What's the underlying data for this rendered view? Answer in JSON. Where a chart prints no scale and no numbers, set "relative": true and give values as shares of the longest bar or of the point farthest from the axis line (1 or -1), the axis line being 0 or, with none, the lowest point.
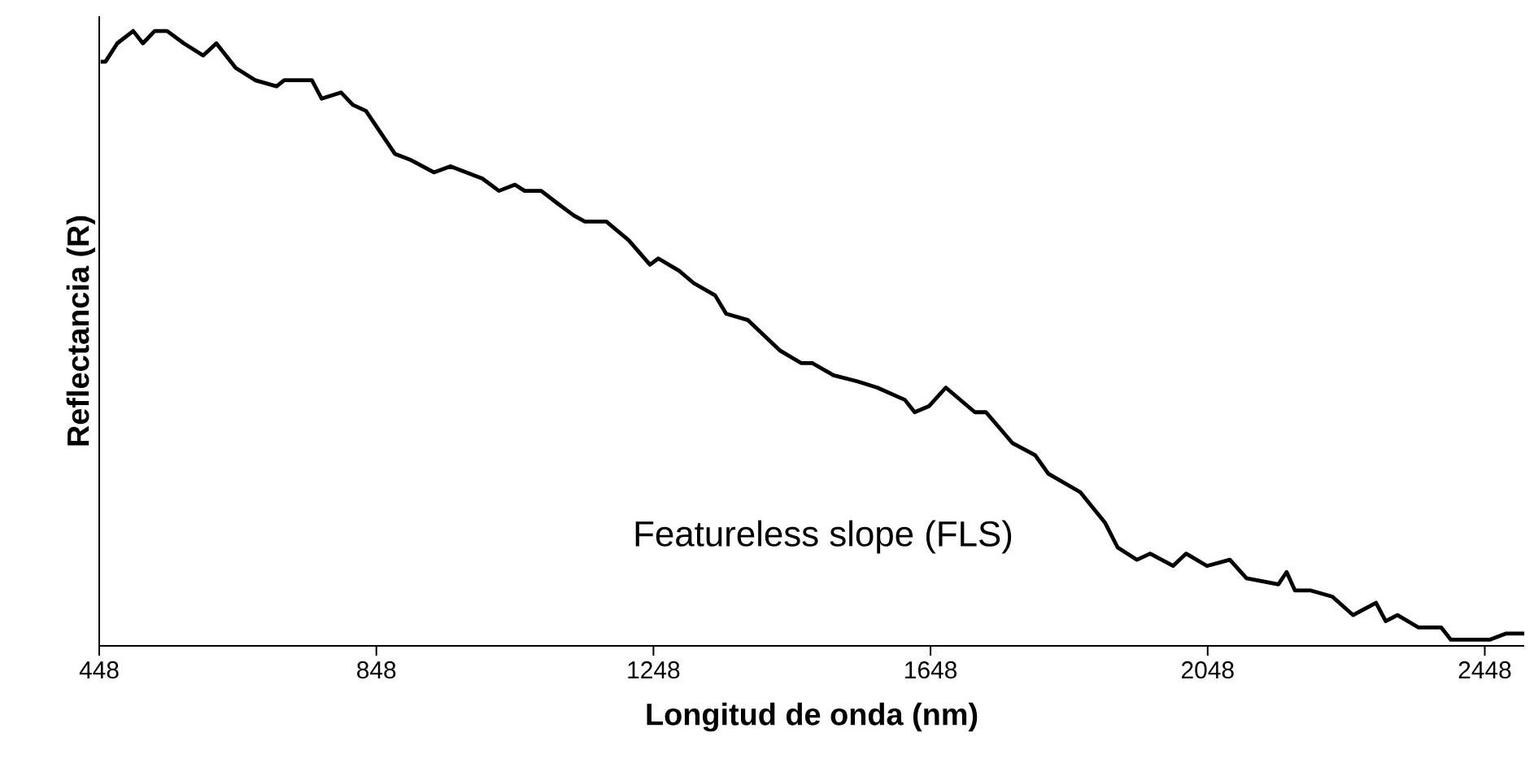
{
  "chart_data": {
    "type": "line",
    "relative": true,
    "xlabel": "Longitud de onda (nm)",
    "ylabel": "Reflectancia (R)",
    "annotations": [
      "Featureless slope (FLS)"
    ],
    "xlim": [
      448,
      2505
    ],
    "xticks": [
      448,
      848,
      1248,
      1648,
      2048,
      2448
    ],
    "grid": false,
    "marker": "none",
    "line_style": "solid",
    "x": [
      450,
      457,
      474,
      497,
      511,
      528,
      546,
      570,
      598,
      617,
      645,
      673,
      704,
      715,
      755,
      769,
      797,
      814,
      833,
      851,
      875,
      898,
      931,
      955,
      1001,
      1025,
      1048,
      1062,
      1086,
      1109,
      1133,
      1149,
      1180,
      1212,
      1243,
      1255,
      1285,
      1306,
      1337,
      1353,
      1384,
      1431,
      1461,
      1477,
      1508,
      1543,
      1571,
      1611,
      1625,
      1646,
      1670,
      1712,
      1728,
      1766,
      1799,
      1818,
      1864,
      1900,
      1918,
      1946,
      1965,
      1998,
      2017,
      2047,
      2080,
      2104,
      2150,
      2162,
      2174,
      2197,
      2228,
      2258,
      2291,
      2305,
      2322,
      2352,
      2385,
      2399,
      2432,
      2455,
      2479,
      2493,
      2505
    ],
    "series": [
      {
        "color": "#000000",
        "values": [
          0.95,
          0.95,
          0.98,
          1.0,
          0.98,
          1.0,
          1.0,
          0.98,
          0.96,
          0.98,
          0.94,
          0.92,
          0.91,
          0.92,
          0.92,
          0.89,
          0.9,
          0.88,
          0.87,
          0.84,
          0.8,
          0.79,
          0.77,
          0.78,
          0.76,
          0.74,
          0.75,
          0.74,
          0.74,
          0.72,
          0.7,
          0.69,
          0.69,
          0.66,
          0.62,
          0.63,
          0.61,
          0.59,
          0.57,
          0.54,
          0.53,
          0.48,
          0.46,
          0.46,
          0.44,
          0.43,
          0.42,
          0.4,
          0.38,
          0.39,
          0.42,
          0.38,
          0.38,
          0.33,
          0.31,
          0.28,
          0.25,
          0.2,
          0.16,
          0.14,
          0.15,
          0.13,
          0.15,
          0.13,
          0.14,
          0.11,
          0.1,
          0.12,
          0.09,
          0.09,
          0.08,
          0.05,
          0.07,
          0.04,
          0.05,
          0.03,
          0.03,
          0.01,
          0.01,
          0.01,
          0.02,
          0.02,
          0.02
        ]
      }
    ]
  }
}
